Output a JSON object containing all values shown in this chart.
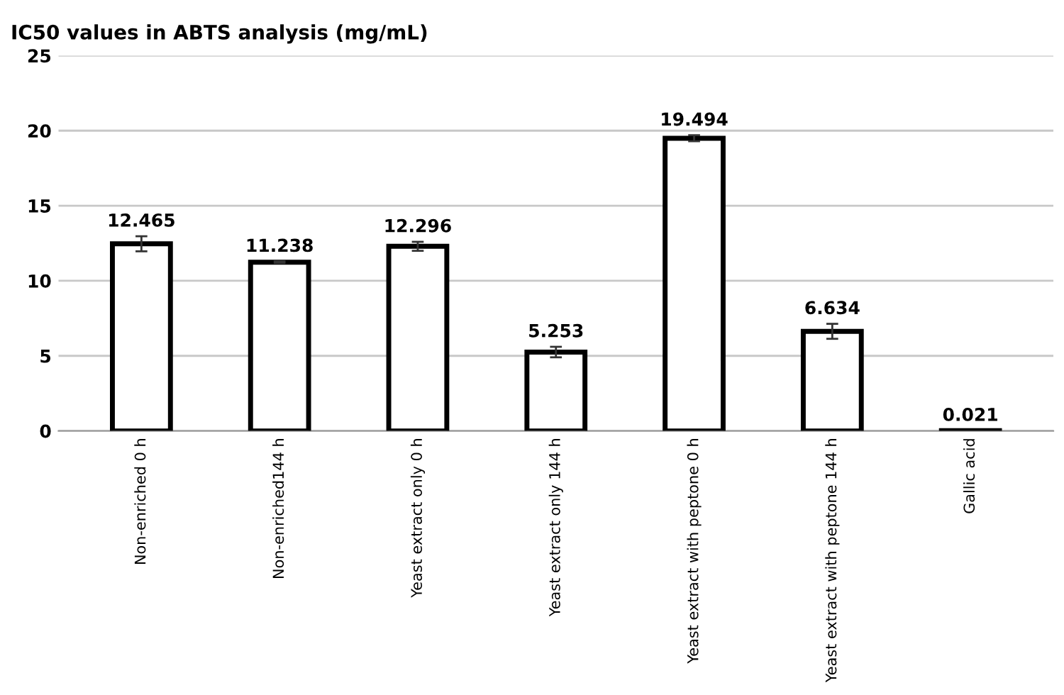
{
  "chart_data": {
    "type": "bar",
    "title": "IC50 values in ABTS analysis (mg/mL)",
    "categories": [
      "Non-enriched 0 h",
      "Non-enriched144 h",
      "Yeast extract only 0 h",
      "Yeast extract only 144 h",
      "Yeast extract with peptone 0 h",
      "Yeast extract with peptone 144 h",
      "Gallic acid"
    ],
    "values": [
      12.465,
      11.238,
      12.296,
      5.253,
      19.494,
      6.634,
      0.021
    ],
    "errors": [
      0.5,
      0.05,
      0.3,
      0.35,
      0.2,
      0.5,
      null
    ],
    "color": "#ffffff",
    "ylim": [
      0,
      25
    ],
    "yticks": [
      0,
      5,
      10,
      15,
      20,
      25
    ],
    "grid": "y",
    "data_labels": true
  }
}
